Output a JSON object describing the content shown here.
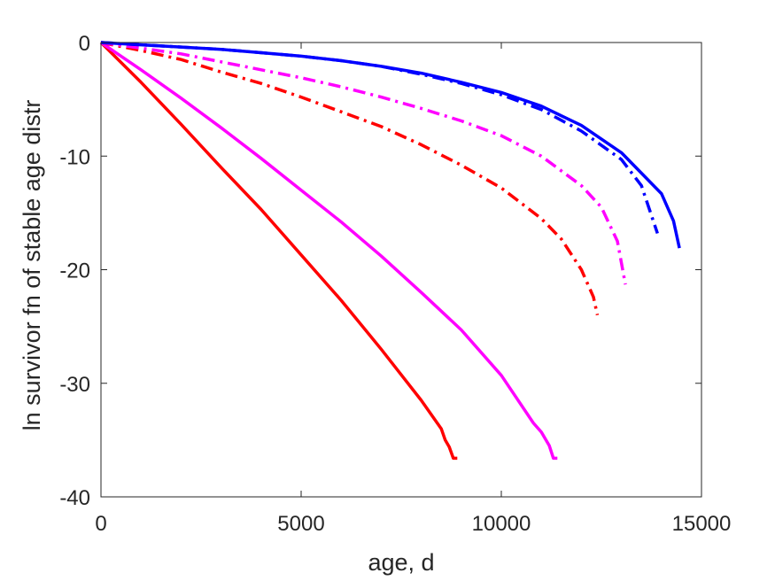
{
  "chart_data": {
    "type": "line",
    "title": "",
    "xlabel": "age, d",
    "ylabel": "ln survivor fn of stable age distr",
    "xlim": [
      0,
      15000
    ],
    "ylim": [
      -40,
      0
    ],
    "xticks": [
      0,
      5000,
      10000,
      15000
    ],
    "yticks": [
      0,
      -10,
      -20,
      -30,
      -40
    ],
    "xtick_labels": [
      "0",
      "5000",
      "10000",
      "15000"
    ],
    "ytick_labels": [
      "0",
      "-10",
      "-20",
      "-30",
      "-40"
    ],
    "grid": false,
    "box": true,
    "series": [
      {
        "color": "#ff0000",
        "style": "solid",
        "x": [
          0,
          1000,
          2000,
          3000,
          4000,
          5000,
          6000,
          7000,
          8000,
          8500,
          8600,
          8700,
          8800,
          8900
        ],
        "y": [
          0,
          -3.5,
          -7.2,
          -11.0,
          -14.7,
          -18.7,
          -22.7,
          -27.0,
          -31.5,
          -34.0,
          -35.0,
          -35.6,
          -36.6,
          -36.6
        ]
      },
      {
        "color": "#ff00ff",
        "style": "solid",
        "x": [
          0,
          1000,
          2000,
          3000,
          4000,
          5000,
          6000,
          7000,
          8000,
          9000,
          10000,
          10800,
          11000,
          11200,
          11300,
          11400
        ],
        "y": [
          0,
          -2.4,
          -4.9,
          -7.5,
          -10.2,
          -13.0,
          -15.8,
          -18.8,
          -22.0,
          -25.3,
          -29.3,
          -33.5,
          -34.3,
          -35.5,
          -36.6,
          -36.6
        ]
      },
      {
        "color": "#ff0000",
        "style": "dashdot",
        "x": [
          0,
          1000,
          2000,
          3000,
          4000,
          5000,
          6000,
          7000,
          8000,
          9000,
          10000,
          11000,
          11500,
          12000,
          12300,
          12400
        ],
        "y": [
          0,
          -0.7,
          -1.5,
          -2.6,
          -3.6,
          -4.8,
          -6.1,
          -7.4,
          -9.0,
          -10.8,
          -12.8,
          -15.5,
          -17.3,
          -20.0,
          -22.4,
          -24.0
        ]
      },
      {
        "color": "#ff00ff",
        "style": "dashdot",
        "x": [
          0,
          1000,
          2000,
          3000,
          4000,
          5000,
          6000,
          7000,
          8000,
          9000,
          10000,
          11000,
          12000,
          12500,
          12900,
          13100
        ],
        "y": [
          0,
          -0.5,
          -1.0,
          -1.7,
          -2.4,
          -3.1,
          -3.9,
          -4.8,
          -5.8,
          -6.9,
          -8.2,
          -10.0,
          -12.6,
          -14.5,
          -17.5,
          -21.3
        ]
      },
      {
        "color": "#0000ff",
        "style": "dashdot",
        "x": [
          0,
          1000,
          2000,
          3000,
          4000,
          5000,
          6000,
          7000,
          8000,
          9000,
          10000,
          11000,
          12000,
          13000,
          13500,
          13900
        ],
        "y": [
          0,
          -0.2,
          -0.4,
          -0.6,
          -0.9,
          -1.2,
          -1.6,
          -2.1,
          -2.8,
          -3.6,
          -4.6,
          -5.9,
          -7.8,
          -10.3,
          -12.6,
          -16.8
        ]
      },
      {
        "color": "#0000ff",
        "style": "solid",
        "x": [
          0,
          1000,
          2000,
          3000,
          4000,
          5000,
          6000,
          7000,
          8000,
          9000,
          10000,
          11000,
          12000,
          13000,
          14000,
          14300,
          14450
        ],
        "y": [
          0,
          -0.2,
          -0.4,
          -0.6,
          -0.9,
          -1.2,
          -1.6,
          -2.1,
          -2.7,
          -3.5,
          -4.4,
          -5.6,
          -7.3,
          -9.7,
          -13.3,
          -15.7,
          -18.1
        ]
      }
    ]
  }
}
